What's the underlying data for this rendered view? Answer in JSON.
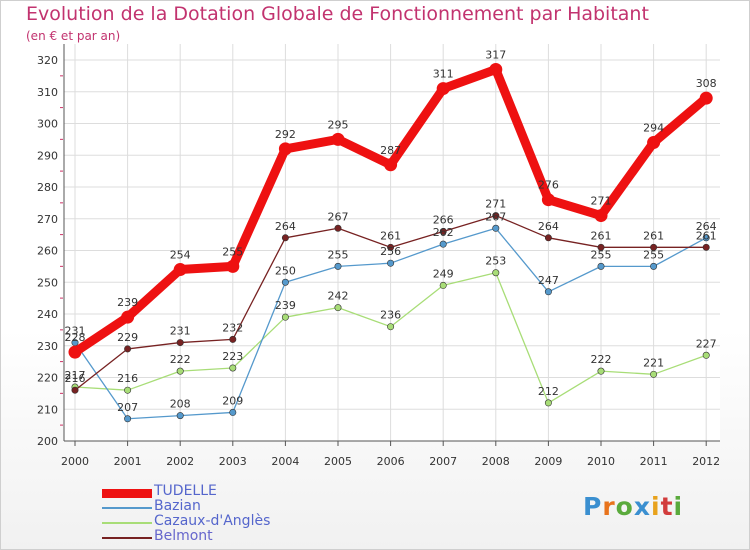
{
  "title": "Evolution de la Dotation Globale de Fonctionnement par Habitant",
  "subtitle": "(en € et par an)",
  "logo": "Proxiti",
  "chart_data": {
    "type": "line",
    "title": "Evolution de la Dotation Globale de Fonctionnement par Habitant",
    "xlabel": "",
    "ylabel": "(en € et par an)",
    "categories": [
      "2000",
      "2001",
      "2002",
      "2003",
      "2004",
      "2005",
      "2006",
      "2007",
      "2008",
      "2009",
      "2010",
      "2011",
      "2012"
    ],
    "yticks": [
      200,
      210,
      220,
      230,
      240,
      250,
      260,
      270,
      280,
      290,
      300,
      310,
      320
    ],
    "ylim": [
      200,
      320
    ],
    "grid": true,
    "legend_position": "bottom-left",
    "series": [
      {
        "name": "TUDELLE",
        "color": "#ee1111",
        "values": [
          228,
          239,
          254,
          255,
          292,
          295,
          287,
          311,
          317,
          276,
          271,
          294,
          308
        ]
      },
      {
        "name": "Bazian",
        "color": "#5599cc",
        "values": [
          231,
          207,
          208,
          209,
          250,
          255,
          256,
          262,
          267,
          247,
          255,
          255,
          264
        ]
      },
      {
        "name": "Cazaux-d'Anglès",
        "color": "#a8dd77",
        "values": [
          217,
          216,
          222,
          223,
          239,
          242,
          236,
          249,
          253,
          212,
          222,
          221,
          227
        ]
      },
      {
        "name": "Belmont",
        "color": "#772222",
        "values": [
          216,
          229,
          231,
          232,
          264,
          267,
          261,
          266,
          271,
          264,
          261,
          261,
          261
        ]
      }
    ]
  }
}
